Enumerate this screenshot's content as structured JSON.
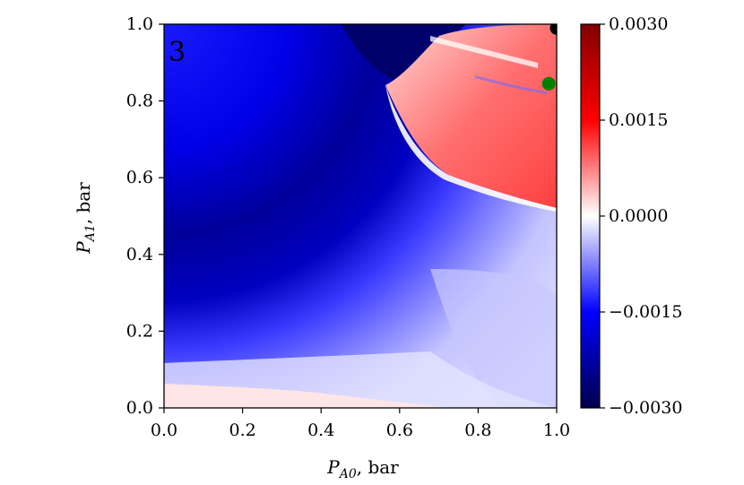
{
  "chart_data": {
    "type": "heatmap",
    "title": "",
    "panel_label": "3",
    "xlabel": {
      "symbol": "P",
      "subscript": "A0",
      "unit": ", bar"
    },
    "ylabel": {
      "symbol": "P",
      "subscript": "A1",
      "unit": ", bar"
    },
    "xlim": [
      0.0,
      1.0
    ],
    "ylim": [
      0.0,
      1.0
    ],
    "x_ticks": [
      "0.0",
      "0.2",
      "0.4",
      "0.6",
      "0.8",
      "1.0"
    ],
    "y_ticks": [
      "0.0",
      "0.2",
      "0.4",
      "0.6",
      "0.8",
      "1.0"
    ],
    "grid": false,
    "colormap": "seismic",
    "colorbar": {
      "vmin": -0.003,
      "vmax": 0.003,
      "ticks": [
        0.003,
        0.0015,
        0.0,
        -0.0015,
        -0.003
      ],
      "tick_labels": [
        "0.0030",
        "0.0015",
        "0.0000",
        "−0.0015",
        "−0.0030"
      ],
      "colors": [
        "#00004c",
        "#0000ff",
        "#ffffff",
        "#ff0000",
        "#800000"
      ]
    },
    "markers": [
      {
        "name": "green-point",
        "x": 0.98,
        "y": 0.845,
        "color": "#008000"
      },
      {
        "name": "black-point",
        "x": 1.0,
        "y": 0.99,
        "color": "#000000"
      }
    ]
  }
}
